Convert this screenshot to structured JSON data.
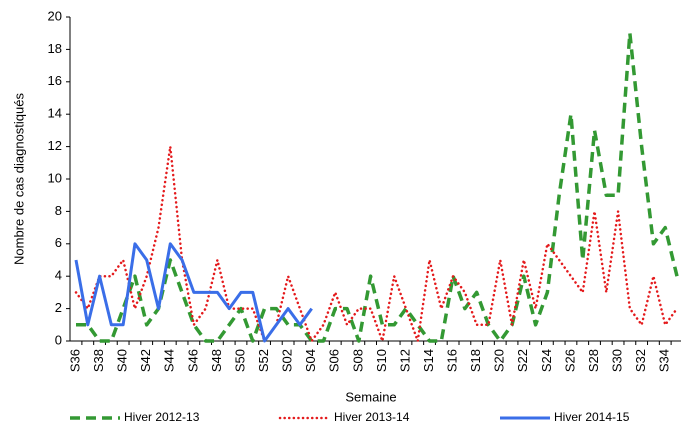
{
  "chart_data": {
    "type": "line",
    "x_label": "Semaine",
    "y_label": "Nombre de cas diagnostiqués",
    "categories": [
      "S36",
      null,
      "S38",
      null,
      "S40",
      null,
      "S42",
      null,
      "S44",
      null,
      "S46",
      null,
      "S48",
      null,
      "S50",
      null,
      "S52",
      null,
      "S02",
      null,
      "S04",
      null,
      "S06",
      null,
      "S08",
      null,
      "S10",
      null,
      "S12",
      null,
      "S14",
      null,
      "S16",
      null,
      "S18",
      null,
      "S20",
      null,
      "S22",
      null,
      "S24",
      null,
      "S26",
      null,
      "S28",
      null,
      "S30",
      null,
      "S32",
      null,
      "S34",
      null
    ],
    "ylim": [
      0,
      20
    ],
    "yticks": [
      0,
      2,
      4,
      6,
      8,
      10,
      12,
      14,
      16,
      18,
      20
    ],
    "grid": false,
    "legend": "bottom",
    "series": [
      {
        "name": "Hiver 2012-13",
        "color": "#339933",
        "dash": "dashed",
        "values": [
          1,
          1,
          0,
          0,
          2,
          4,
          1,
          2,
          5,
          3,
          1,
          0,
          0,
          1,
          2,
          0,
          2,
          2,
          1,
          1,
          0,
          0,
          2,
          2,
          0,
          4,
          1,
          1,
          2,
          1,
          0,
          0,
          4,
          2,
          3,
          1,
          0,
          1,
          4,
          1,
          3,
          9,
          14,
          5,
          13,
          9,
          9,
          19,
          12,
          6,
          7,
          4
        ]
      },
      {
        "name": "Hiver 2013-14",
        "color": "#e41a1c",
        "dash": "dotted",
        "values": [
          3,
          2,
          4,
          4,
          5,
          2,
          4,
          7,
          12,
          5,
          1,
          2,
          5,
          2,
          2,
          2,
          0,
          1,
          4,
          2,
          0,
          1,
          3,
          1,
          2,
          2,
          0,
          4,
          2,
          0,
          5,
          2,
          4,
          3,
          1,
          1,
          5,
          1,
          5,
          2,
          6,
          5,
          4,
          3,
          8,
          3,
          8,
          2,
          1,
          4,
          1,
          2
        ]
      },
      {
        "name": "Hiver 2014-15",
        "color": "#3a6ee8",
        "dash": "solid",
        "values": [
          5,
          1,
          4,
          1,
          1,
          6,
          5,
          2,
          6,
          5,
          3,
          3,
          3,
          2,
          3,
          3,
          0,
          1,
          2,
          1,
          2,
          null,
          null,
          null,
          null,
          null,
          null,
          null,
          null,
          null,
          null,
          null,
          null,
          null,
          null,
          null,
          null,
          null,
          null,
          null,
          null,
          null,
          null,
          null,
          null,
          null,
          null,
          null,
          null,
          null,
          null,
          null
        ]
      }
    ]
  }
}
